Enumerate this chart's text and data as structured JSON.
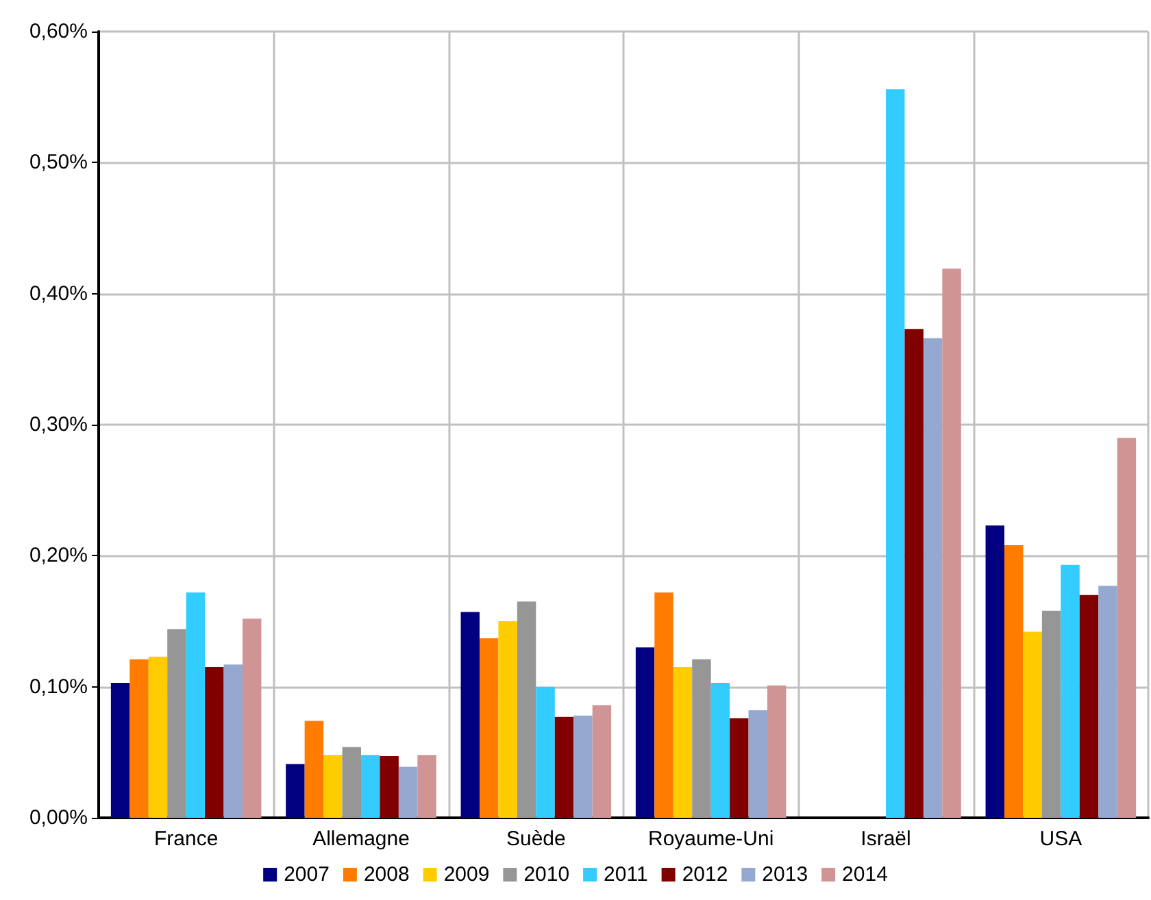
{
  "chart_data": {
    "type": "bar",
    "categories": [
      "France",
      "Allemagne",
      "Suède",
      "Royaume-Uni",
      "Israël",
      "USA"
    ],
    "series": [
      {
        "name": "2007",
        "color": "#000080",
        "values": [
          0.103,
          0.041,
          0.157,
          0.13,
          null,
          0.223
        ]
      },
      {
        "name": "2008",
        "color": "#ff7c00",
        "values": [
          0.121,
          0.074,
          0.137,
          0.172,
          null,
          0.208
        ]
      },
      {
        "name": "2009",
        "color": "#ffcc00",
        "values": [
          0.123,
          0.048,
          0.15,
          0.115,
          null,
          0.142
        ]
      },
      {
        "name": "2010",
        "color": "#969696",
        "values": [
          0.144,
          0.054,
          0.165,
          0.121,
          null,
          0.158
        ]
      },
      {
        "name": "2011",
        "color": "#33ccff",
        "values": [
          0.172,
          0.048,
          0.1,
          0.103,
          0.556,
          0.193
        ]
      },
      {
        "name": "2012",
        "color": "#800000",
        "values": [
          0.115,
          0.047,
          0.077,
          0.076,
          0.373,
          0.17
        ]
      },
      {
        "name": "2013",
        "color": "#95a9d0",
        "values": [
          0.117,
          0.039,
          0.078,
          0.082,
          0.366,
          0.177
        ]
      },
      {
        "name": "2014",
        "color": "#d09494",
        "values": [
          0.152,
          0.048,
          0.086,
          0.101,
          0.419,
          0.29
        ]
      }
    ],
    "ylim": [
      0,
      0.6
    ],
    "yticks": [
      {
        "value": 0,
        "label": "0,00%"
      },
      {
        "value": 0.1,
        "label": "0,10%"
      },
      {
        "value": 0.2,
        "label": "0,20%"
      },
      {
        "value": 0.3,
        "label": "0,30%"
      },
      {
        "value": 0.4,
        "label": "0,40%"
      },
      {
        "value": 0.5,
        "label": "0,50%"
      },
      {
        "value": 0.6,
        "label": "0,60%"
      }
    ],
    "grid": true,
    "legend": "bottom"
  }
}
